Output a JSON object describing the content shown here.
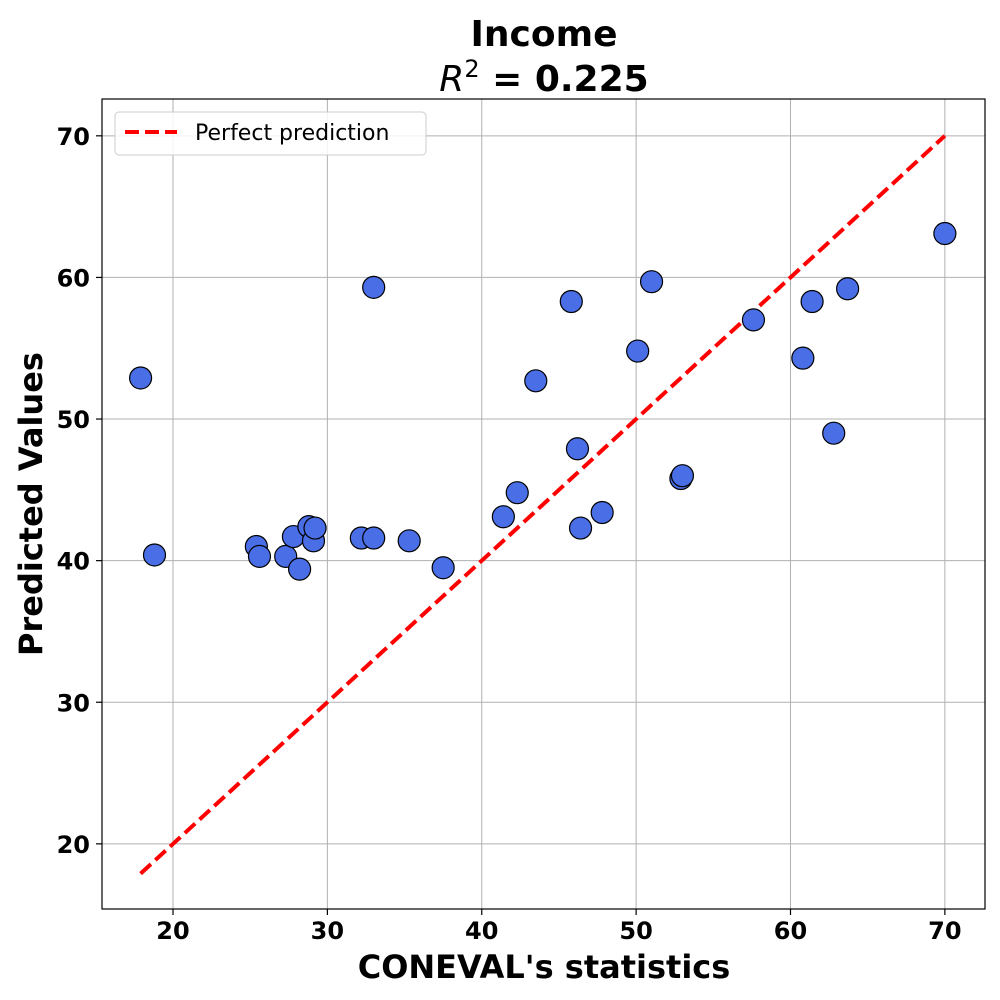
{
  "chart_data": {
    "type": "scatter",
    "title": "Income",
    "subtitle": {
      "symbol": "R",
      "superscript": "2",
      "rest": " = 0.225"
    },
    "xlabel": "CONEVAL's statistics",
    "ylabel": "Predicted Values",
    "xlim": [
      15.4,
      72.6
    ],
    "ylim": [
      15.4,
      72.6
    ],
    "xticks": [
      20,
      30,
      40,
      50,
      60,
      70
    ],
    "yticks": [
      20,
      30,
      40,
      50,
      60,
      70
    ],
    "grid": true,
    "legend_position": "top-left",
    "series": [
      {
        "type": "scatter",
        "color": "#4a6ee6",
        "edge_color": "#000000",
        "points": [
          {
            "x": 17.9,
            "y": 52.9
          },
          {
            "x": 18.8,
            "y": 40.4
          },
          {
            "x": 25.4,
            "y": 41.0
          },
          {
            "x": 25.6,
            "y": 40.3
          },
          {
            "x": 27.3,
            "y": 40.3
          },
          {
            "x": 27.8,
            "y": 41.7
          },
          {
            "x": 28.2,
            "y": 39.4
          },
          {
            "x": 28.8,
            "y": 42.4
          },
          {
            "x": 29.1,
            "y": 41.4
          },
          {
            "x": 29.2,
            "y": 42.3
          },
          {
            "x": 32.2,
            "y": 41.6
          },
          {
            "x": 33.0,
            "y": 41.6
          },
          {
            "x": 33.0,
            "y": 59.3
          },
          {
            "x": 35.3,
            "y": 41.4
          },
          {
            "x": 37.5,
            "y": 39.5
          },
          {
            "x": 41.4,
            "y": 43.1
          },
          {
            "x": 42.3,
            "y": 44.8
          },
          {
            "x": 43.5,
            "y": 52.7
          },
          {
            "x": 45.8,
            "y": 58.3
          },
          {
            "x": 46.2,
            "y": 47.9
          },
          {
            "x": 46.4,
            "y": 42.3
          },
          {
            "x": 47.8,
            "y": 43.4
          },
          {
            "x": 50.1,
            "y": 54.8
          },
          {
            "x": 51.0,
            "y": 59.7
          },
          {
            "x": 52.9,
            "y": 45.8
          },
          {
            "x": 53.0,
            "y": 46.0
          },
          {
            "x": 57.6,
            "y": 57.0
          },
          {
            "x": 60.8,
            "y": 54.3
          },
          {
            "x": 61.4,
            "y": 58.3
          },
          {
            "x": 62.8,
            "y": 49.0
          },
          {
            "x": 63.7,
            "y": 59.2
          },
          {
            "x": 70.0,
            "y": 63.1
          }
        ]
      },
      {
        "type": "line",
        "name": "Perfect prediction",
        "color": "#ff0000",
        "style": "dashed",
        "x": [
          17.9,
          70.0
        ],
        "y": [
          17.9,
          70.0
        ]
      }
    ]
  }
}
